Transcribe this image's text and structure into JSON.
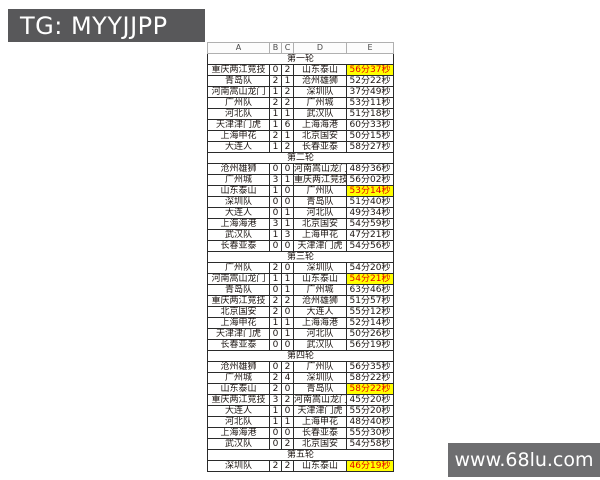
{
  "tg_badge": {
    "text": "TG: MYYJJPP",
    "bg": "#58585a",
    "fg": "#ffffff"
  },
  "watermark": {
    "text": "www.68lu.com",
    "bg": "#6e6e70",
    "fg": "#ffffff"
  },
  "spreadsheet": {
    "column_headers": [
      "A",
      "B",
      "C",
      "D",
      "E"
    ],
    "highlight_colors": {
      "bg": "#ffff00",
      "fg": "#e60000"
    },
    "rounds": [
      {
        "label": "第一轮",
        "matches": [
          {
            "home": "重庆两江竞技",
            "home_score": "0",
            "away_score": "2",
            "away": "山东泰山",
            "time": "56分37秒",
            "highlight": true
          },
          {
            "home": "青岛队",
            "home_score": "2",
            "away_score": "1",
            "away": "沧州雄狮",
            "time": "52分22秒",
            "highlight": false
          },
          {
            "home": "河南嵩山龙门",
            "home_score": "1",
            "away_score": "2",
            "away": "深圳队",
            "time": "37分49秒",
            "highlight": false
          },
          {
            "home": "广州队",
            "home_score": "2",
            "away_score": "2",
            "away": "广州城",
            "time": "53分11秒",
            "highlight": false
          },
          {
            "home": "河北队",
            "home_score": "1",
            "away_score": "1",
            "away": "武汉队",
            "time": "51分18秒",
            "highlight": false
          },
          {
            "home": "天津津门虎",
            "home_score": "1",
            "away_score": "6",
            "away": "上海海港",
            "time": "60分33秒",
            "highlight": false
          },
          {
            "home": "上海申花",
            "home_score": "2",
            "away_score": "1",
            "away": "北京国安",
            "time": "50分15秒",
            "highlight": false
          },
          {
            "home": "大连人",
            "home_score": "1",
            "away_score": "2",
            "away": "长春亚泰",
            "time": "58分27秒",
            "highlight": false
          }
        ]
      },
      {
        "label": "第二轮",
        "matches": [
          {
            "home": "沧州雄狮",
            "home_score": "0",
            "away_score": "0",
            "away": "河南嵩山龙门",
            "time": "48分36秒",
            "highlight": false
          },
          {
            "home": "广州城",
            "home_score": "3",
            "away_score": "1",
            "away": "重庆两江竞技",
            "time": "56分02秒",
            "highlight": false
          },
          {
            "home": "山东泰山",
            "home_score": "1",
            "away_score": "0",
            "away": "广州队",
            "time": "53分14秒",
            "highlight": true
          },
          {
            "home": "深圳队",
            "home_score": "0",
            "away_score": "0",
            "away": "青岛队",
            "time": "51分40秒",
            "highlight": false
          },
          {
            "home": "大连人",
            "home_score": "0",
            "away_score": "1",
            "away": "河北队",
            "time": "49分34秒",
            "highlight": false
          },
          {
            "home": "上海海港",
            "home_score": "3",
            "away_score": "1",
            "away": "北京国安",
            "time": "54分59秒",
            "highlight": false
          },
          {
            "home": "武汉队",
            "home_score": "1",
            "away_score": "3",
            "away": "上海申花",
            "time": "47分21秒",
            "highlight": false
          },
          {
            "home": "长春亚泰",
            "home_score": "0",
            "away_score": "0",
            "away": "天津津门虎",
            "time": "54分56秒",
            "highlight": false
          }
        ]
      },
      {
        "label": "第三轮",
        "matches": [
          {
            "home": "广州队",
            "home_score": "2",
            "away_score": "0",
            "away": "深圳队",
            "time": "54分20秒",
            "highlight": false
          },
          {
            "home": "河南嵩山龙门",
            "home_score": "1",
            "away_score": "1",
            "away": "山东泰山",
            "time": "54分21秒",
            "highlight": true
          },
          {
            "home": "青岛队",
            "home_score": "0",
            "away_score": "1",
            "away": "广州城",
            "time": "63分46秒",
            "highlight": false
          },
          {
            "home": "重庆两江竞技",
            "home_score": "2",
            "away_score": "2",
            "away": "沧州雄狮",
            "time": "51分57秒",
            "highlight": false
          },
          {
            "home": "北京国安",
            "home_score": "2",
            "away_score": "0",
            "away": "大连人",
            "time": "55分12秒",
            "highlight": false
          },
          {
            "home": "上海申花",
            "home_score": "1",
            "away_score": "1",
            "away": "上海海港",
            "time": "52分14秒",
            "highlight": false
          },
          {
            "home": "天津津门虎",
            "home_score": "0",
            "away_score": "1",
            "away": "河北队",
            "time": "50分26秒",
            "highlight": false
          },
          {
            "home": "长春亚泰",
            "home_score": "0",
            "away_score": "0",
            "away": "武汉队",
            "time": "56分19秒",
            "highlight": false
          }
        ]
      },
      {
        "label": "第四轮",
        "matches": [
          {
            "home": "沧州雄狮",
            "home_score": "0",
            "away_score": "2",
            "away": "广州队",
            "time": "56分35秒",
            "highlight": false
          },
          {
            "home": "广州城",
            "home_score": "2",
            "away_score": "4",
            "away": "深圳队",
            "time": "58分22秒",
            "highlight": false
          },
          {
            "home": "山东泰山",
            "home_score": "2",
            "away_score": "0",
            "away": "青岛队",
            "time": "58分22秒",
            "highlight": true
          },
          {
            "home": "重庆两江竞技",
            "home_score": "3",
            "away_score": "2",
            "away": "河南嵩山龙门",
            "time": "45分20秒",
            "highlight": false
          },
          {
            "home": "大连人",
            "home_score": "1",
            "away_score": "0",
            "away": "天津津门虎",
            "time": "55分20秒",
            "highlight": false
          },
          {
            "home": "河北队",
            "home_score": "1",
            "away_score": "1",
            "away": "上海申花",
            "time": "48分40秒",
            "highlight": false
          },
          {
            "home": "上海海港",
            "home_score": "0",
            "away_score": "0",
            "away": "长春亚泰",
            "time": "55分30秒",
            "highlight": false
          },
          {
            "home": "武汉队",
            "home_score": "0",
            "away_score": "2",
            "away": "北京国安",
            "time": "54分58秒",
            "highlight": false
          }
        ]
      },
      {
        "label": "第五轮",
        "matches": [
          {
            "home": "深圳队",
            "home_score": "2",
            "away_score": "2",
            "away": "山东泰山",
            "time": "46分19秒",
            "highlight": true
          }
        ]
      }
    ]
  }
}
